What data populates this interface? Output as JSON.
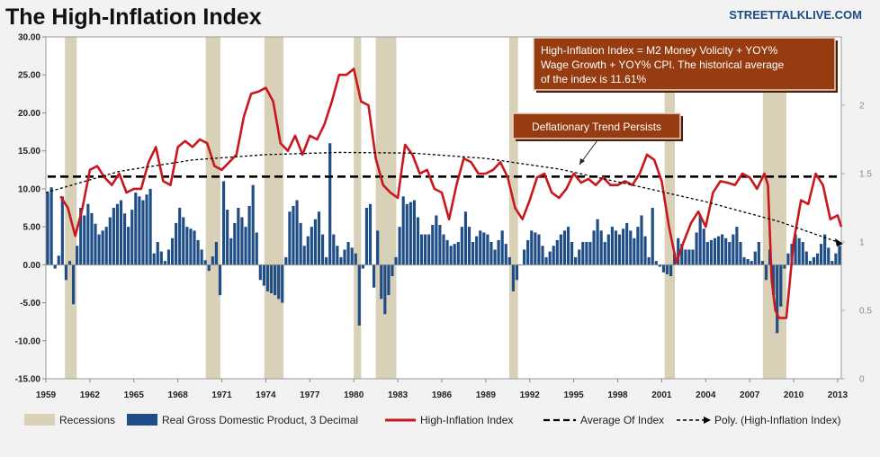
{
  "header": {
    "title": "The High-Inflation Index",
    "brand": "STREETTALKLIVE.COM"
  },
  "colors": {
    "background": "#f2f2f2",
    "gdp_bar": "#1f4e86",
    "recession": "#d9d0b8",
    "index_line": "#c8181e",
    "average_line": "#000000",
    "annotation_fill": "#963c10"
  },
  "chart_data": {
    "type": "combo",
    "title": "The High-Inflation Index",
    "y_left": {
      "min": -15,
      "max": 30,
      "step": 5,
      "ticks": [
        "-15.00",
        "-10.00",
        "-5.00",
        "0.00",
        "5.00",
        "10.00",
        "15.00",
        "20.00",
        "25.00",
        "30.00"
      ]
    },
    "y_right": {
      "min": 0,
      "max": 2.5,
      "ticks": [
        "0",
        "0.5",
        "1",
        "1.5",
        "2"
      ]
    },
    "x_range": [
      1959.0,
      2013.25
    ],
    "x_ticks": [
      "1959",
      "1962",
      "1965",
      "1968",
      "1971",
      "1974",
      "1977",
      "1980",
      "1983",
      "1986",
      "1989",
      "1992",
      "1995",
      "1998",
      "2001",
      "2004",
      "2007",
      "2010",
      "2013"
    ],
    "recessions": [
      [
        1960.3,
        1961.1
      ],
      [
        1969.9,
        1970.9
      ],
      [
        1973.9,
        1975.2
      ],
      [
        1980.0,
        1980.5
      ],
      [
        1981.5,
        1982.9
      ],
      [
        1990.6,
        1991.2
      ],
      [
        2001.2,
        2001.9
      ],
      [
        2007.9,
        2009.5
      ]
    ],
    "gdp_series": {
      "name": "Real Gross Domestic Product, 3 Decimal",
      "anchors": [
        [
          1959.0,
          9.5
        ],
        [
          1959.25,
          10.2
        ],
        [
          1959.5,
          -0.5
        ],
        [
          1959.75,
          1.2
        ],
        [
          1960.0,
          9.0
        ],
        [
          1960.25,
          -2.0
        ],
        [
          1960.5,
          0.5
        ],
        [
          1960.75,
          -5.2
        ],
        [
          1961.0,
          2.5
        ],
        [
          1961.25,
          7.5
        ],
        [
          1961.5,
          6.5
        ],
        [
          1961.75,
          8.0
        ],
        [
          1962.0,
          6.8
        ],
        [
          1962.5,
          4.0
        ],
        [
          1963.0,
          5.0
        ],
        [
          1963.5,
          7.5
        ],
        [
          1964.0,
          8.5
        ],
        [
          1964.5,
          5.0
        ],
        [
          1965.0,
          9.5
        ],
        [
          1965.5,
          8.5
        ],
        [
          1966.0,
          10.0
        ],
        [
          1966.25,
          1.5
        ],
        [
          1966.5,
          3.0
        ],
        [
          1967.0,
          0.5
        ],
        [
          1967.5,
          3.5
        ],
        [
          1968.0,
          7.5
        ],
        [
          1968.5,
          5.0
        ],
        [
          1969.0,
          4.5
        ],
        [
          1969.5,
          2.0
        ],
        [
          1970.0,
          -0.8
        ],
        [
          1970.5,
          3.0
        ],
        [
          1970.75,
          -4.0
        ],
        [
          1971.0,
          11.0
        ],
        [
          1971.5,
          3.5
        ],
        [
          1972.0,
          7.5
        ],
        [
          1972.5,
          5.0
        ],
        [
          1973.0,
          10.5
        ],
        [
          1973.5,
          -2.0
        ],
        [
          1974.0,
          -3.5
        ],
        [
          1974.5,
          -4.0
        ],
        [
          1975.0,
          -5.0
        ],
        [
          1975.5,
          7.0
        ],
        [
          1976.0,
          8.5
        ],
        [
          1976.5,
          2.5
        ],
        [
          1977.0,
          5.0
        ],
        [
          1977.5,
          7.0
        ],
        [
          1978.0,
          1.0
        ],
        [
          1978.25,
          16.0
        ],
        [
          1978.5,
          4.0
        ],
        [
          1979.0,
          1.0
        ],
        [
          1979.5,
          3.0
        ],
        [
          1980.0,
          1.5
        ],
        [
          1980.25,
          -8.0
        ],
        [
          1980.5,
          -0.5
        ],
        [
          1980.75,
          7.5
        ],
        [
          1981.0,
          8.0
        ],
        [
          1981.25,
          -3.0
        ],
        [
          1981.5,
          4.5
        ],
        [
          1981.75,
          -4.5
        ],
        [
          1982.0,
          -6.5
        ],
        [
          1982.5,
          -1.5
        ],
        [
          1982.75,
          1.0
        ],
        [
          1983.0,
          5.0
        ],
        [
          1983.25,
          9.0
        ],
        [
          1983.5,
          8.0
        ],
        [
          1984.0,
          8.5
        ],
        [
          1984.5,
          4.0
        ],
        [
          1985.0,
          4.0
        ],
        [
          1985.5,
          6.5
        ],
        [
          1986.0,
          4.0
        ],
        [
          1986.5,
          2.5
        ],
        [
          1987.0,
          3.0
        ],
        [
          1987.5,
          7.0
        ],
        [
          1988.0,
          3.0
        ],
        [
          1988.5,
          4.5
        ],
        [
          1989.0,
          4.0
        ],
        [
          1989.5,
          2.0
        ],
        [
          1990.0,
          4.5
        ],
        [
          1990.5,
          1.0
        ],
        [
          1990.75,
          -3.5
        ],
        [
          1991.0,
          -2.0
        ],
        [
          1991.5,
          2.0
        ],
        [
          1992.0,
          4.5
        ],
        [
          1992.5,
          4.0
        ],
        [
          1993.0,
          1.0
        ],
        [
          1993.5,
          2.5
        ],
        [
          1994.0,
          4.0
        ],
        [
          1994.5,
          5.0
        ],
        [
          1995.0,
          1.0
        ],
        [
          1995.5,
          3.0
        ],
        [
          1996.0,
          3.0
        ],
        [
          1996.5,
          6.0
        ],
        [
          1997.0,
          3.0
        ],
        [
          1997.5,
          5.0
        ],
        [
          1998.0,
          4.0
        ],
        [
          1998.5,
          5.5
        ],
        [
          1999.0,
          3.5
        ],
        [
          1999.5,
          6.5
        ],
        [
          2000.0,
          1.0
        ],
        [
          2000.25,
          7.5
        ],
        [
          2000.5,
          0.5
        ],
        [
          2001.0,
          -1.0
        ],
        [
          2001.5,
          -1.5
        ],
        [
          2001.75,
          1.5
        ],
        [
          2002.0,
          3.5
        ],
        [
          2002.5,
          2.0
        ],
        [
          2003.0,
          2.0
        ],
        [
          2003.5,
          6.5
        ],
        [
          2004.0,
          3.0
        ],
        [
          2004.5,
          3.5
        ],
        [
          2005.0,
          4.0
        ],
        [
          2005.5,
          3.0
        ],
        [
          2006.0,
          5.0
        ],
        [
          2006.5,
          1.0
        ],
        [
          2007.0,
          0.5
        ],
        [
          2007.5,
          3.0
        ],
        [
          2008.0,
          -2.0
        ],
        [
          2008.25,
          2.0
        ],
        [
          2008.5,
          -4.0
        ],
        [
          2008.75,
          -9.0
        ],
        [
          2009.0,
          -5.5
        ],
        [
          2009.25,
          -0.5
        ],
        [
          2009.5,
          1.5
        ],
        [
          2010.0,
          4.0
        ],
        [
          2010.5,
          3.0
        ],
        [
          2011.0,
          0.5
        ],
        [
          2011.5,
          1.5
        ],
        [
          2012.0,
          4.0
        ],
        [
          2012.5,
          0.5
        ],
        [
          2013.0,
          2.5
        ]
      ]
    },
    "index_series": {
      "name": "High-Inflation Index",
      "points": [
        [
          1960.0,
          9.0
        ],
        [
          1960.5,
          7.5
        ],
        [
          1961.0,
          3.8
        ],
        [
          1961.5,
          7.5
        ],
        [
          1962.0,
          12.5
        ],
        [
          1962.5,
          13.0
        ],
        [
          1963.0,
          11.5
        ],
        [
          1963.5,
          10.5
        ],
        [
          1964.0,
          12.0
        ],
        [
          1964.5,
          9.5
        ],
        [
          1965.0,
          10.0
        ],
        [
          1965.5,
          10.0
        ],
        [
          1966.0,
          13.5
        ],
        [
          1966.5,
          15.5
        ],
        [
          1967.0,
          11.0
        ],
        [
          1967.5,
          10.5
        ],
        [
          1968.0,
          15.5
        ],
        [
          1968.5,
          16.3
        ],
        [
          1969.0,
          15.5
        ],
        [
          1969.5,
          16.5
        ],
        [
          1970.0,
          16.0
        ],
        [
          1970.5,
          13.0
        ],
        [
          1971.0,
          12.5
        ],
        [
          1971.5,
          13.5
        ],
        [
          1972.0,
          14.5
        ],
        [
          1972.5,
          19.5
        ],
        [
          1973.0,
          22.5
        ],
        [
          1973.5,
          22.8
        ],
        [
          1974.0,
          23.3
        ],
        [
          1974.5,
          21.5
        ],
        [
          1975.0,
          16.0
        ],
        [
          1975.5,
          15.0
        ],
        [
          1976.0,
          17.0
        ],
        [
          1976.5,
          14.5
        ],
        [
          1977.0,
          17.0
        ],
        [
          1977.5,
          16.5
        ],
        [
          1978.0,
          18.5
        ],
        [
          1978.5,
          21.5
        ],
        [
          1979.0,
          25.0
        ],
        [
          1979.5,
          25.0
        ],
        [
          1980.0,
          25.8
        ],
        [
          1980.5,
          21.5
        ],
        [
          1981.0,
          21.0
        ],
        [
          1981.5,
          14.0
        ],
        [
          1982.0,
          10.5
        ],
        [
          1982.5,
          9.5
        ],
        [
          1983.0,
          8.8
        ],
        [
          1983.5,
          15.8
        ],
        [
          1984.0,
          14.5
        ],
        [
          1984.5,
          12.0
        ],
        [
          1985.0,
          12.5
        ],
        [
          1985.5,
          10.0
        ],
        [
          1986.0,
          9.5
        ],
        [
          1986.5,
          6.0
        ],
        [
          1987.0,
          10.5
        ],
        [
          1987.5,
          14.0
        ],
        [
          1988.0,
          13.5
        ],
        [
          1988.5,
          12.0
        ],
        [
          1989.0,
          12.0
        ],
        [
          1989.5,
          12.5
        ],
        [
          1990.0,
          13.5
        ],
        [
          1990.5,
          11.5
        ],
        [
          1991.0,
          7.5
        ],
        [
          1991.5,
          6.0
        ],
        [
          1992.0,
          8.5
        ],
        [
          1992.5,
          11.5
        ],
        [
          1993.0,
          12.0
        ],
        [
          1993.5,
          9.5
        ],
        [
          1994.0,
          8.8
        ],
        [
          1994.5,
          10.0
        ],
        [
          1995.0,
          12.0
        ],
        [
          1995.5,
          10.8
        ],
        [
          1996.0,
          11.3
        ],
        [
          1996.5,
          10.5
        ],
        [
          1997.0,
          11.5
        ],
        [
          1997.5,
          10.5
        ],
        [
          1998.0,
          10.5
        ],
        [
          1998.5,
          11.0
        ],
        [
          1999.0,
          10.5
        ],
        [
          1999.5,
          12.0
        ],
        [
          2000.0,
          14.5
        ],
        [
          2000.5,
          13.8
        ],
        [
          2001.0,
          11.0
        ],
        [
          2001.5,
          5.0
        ],
        [
          2002.0,
          0.3
        ],
        [
          2002.5,
          3.0
        ],
        [
          2003.0,
          5.5
        ],
        [
          2003.5,
          7.0
        ],
        [
          2004.0,
          5.0
        ],
        [
          2004.5,
          9.5
        ],
        [
          2005.0,
          11.0
        ],
        [
          2005.5,
          10.8
        ],
        [
          2006.0,
          10.5
        ],
        [
          2006.5,
          12.0
        ],
        [
          2007.0,
          11.5
        ],
        [
          2007.5,
          10.0
        ],
        [
          2008.0,
          12.0
        ],
        [
          2008.25,
          10.5
        ],
        [
          2008.5,
          -2.0
        ],
        [
          2008.75,
          -6.0
        ],
        [
          2009.0,
          -7.0
        ],
        [
          2009.5,
          -7.0
        ],
        [
          2010.0,
          3.0
        ],
        [
          2010.5,
          8.5
        ],
        [
          2011.0,
          8.0
        ],
        [
          2011.5,
          12.0
        ],
        [
          2012.0,
          10.5
        ],
        [
          2012.5,
          6.0
        ],
        [
          2013.0,
          6.5
        ],
        [
          2013.25,
          5.0
        ]
      ]
    },
    "average": {
      "name": "Average Of Index",
      "value": 11.61
    },
    "trend": {
      "name": "Poly. (High-Inflation Index)",
      "points": [
        [
          1959.0,
          9.5
        ],
        [
          1964.0,
          12.3
        ],
        [
          1969.0,
          13.8
        ],
        [
          1974.0,
          14.5
        ],
        [
          1979.0,
          14.8
        ],
        [
          1984.0,
          14.7
        ],
        [
          1989.0,
          14.0
        ],
        [
          1994.0,
          12.6
        ],
        [
          1999.0,
          10.5
        ],
        [
          2004.0,
          8.3
        ],
        [
          2009.0,
          5.7
        ],
        [
          2013.0,
          3.0
        ]
      ]
    }
  },
  "annotations": {
    "main": {
      "line1": "High-Inflation Index = M2 Money Volicity + YOY%",
      "line2": "Wage Growth + YOY% CPI.    The historical average",
      "line3": "of the index is 11.61%"
    },
    "trend_label": "Deflationary Trend Persists"
  },
  "legend": {
    "recessions": "Recessions",
    "gdp": "Real Gross Domestic Product, 3 Decimal",
    "index": "High-Inflation Index",
    "average": "Average Of Index",
    "poly": "Poly. (High-Inflation Index)"
  }
}
